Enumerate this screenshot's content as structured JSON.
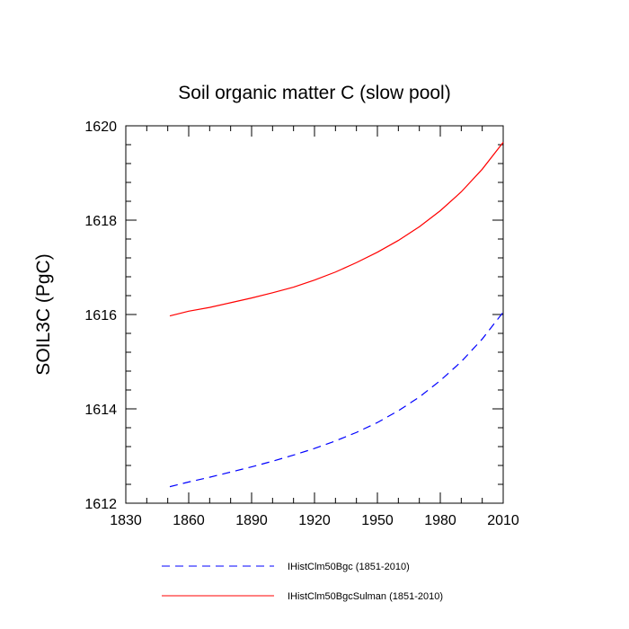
{
  "chart_data": {
    "type": "line",
    "title": "Soil organic matter C (slow pool)",
    "xlabel": "",
    "ylabel": "SOIL3C  (PgC)",
    "xlim": [
      1830,
      2010
    ],
    "ylim": [
      1612,
      1620
    ],
    "xticks": [
      1830,
      1860,
      1890,
      1920,
      1950,
      1980,
      2010
    ],
    "yticks": [
      1612,
      1614,
      1616,
      1618,
      1620
    ],
    "xtick_labels": [
      "1830",
      "1860",
      "1890",
      "1920",
      "1950",
      "1980",
      "2010"
    ],
    "ytick_labels": [
      "1612",
      "1614",
      "1616",
      "1618",
      "1620"
    ],
    "grid": false,
    "legend_position": "bottom",
    "series": [
      {
        "name": "IHistClm50Bgc (1851-2010)",
        "color": "#0000ff",
        "dash": "dashed",
        "x": [
          1851,
          1860,
          1870,
          1880,
          1890,
          1900,
          1910,
          1920,
          1930,
          1940,
          1950,
          1960,
          1970,
          1980,
          1990,
          2000,
          2010
        ],
        "y": [
          1612.35,
          1612.45,
          1612.55,
          1612.66,
          1612.77,
          1612.89,
          1613.02,
          1613.16,
          1613.32,
          1613.5,
          1613.71,
          1613.96,
          1614.25,
          1614.6,
          1615.0,
          1615.48,
          1616.05
        ]
      },
      {
        "name": "IHistClm50BgcSulman (1851-2010)",
        "color": "#ff0000",
        "dash": "solid",
        "x": [
          1851,
          1860,
          1870,
          1880,
          1890,
          1900,
          1910,
          1920,
          1930,
          1940,
          1950,
          1960,
          1970,
          1980,
          1990,
          2000,
          2010
        ],
        "y": [
          1615.97,
          1616.07,
          1616.15,
          1616.25,
          1616.35,
          1616.46,
          1616.58,
          1616.73,
          1616.9,
          1617.1,
          1617.32,
          1617.57,
          1617.86,
          1618.2,
          1618.6,
          1619.08,
          1619.65
        ]
      }
    ]
  }
}
